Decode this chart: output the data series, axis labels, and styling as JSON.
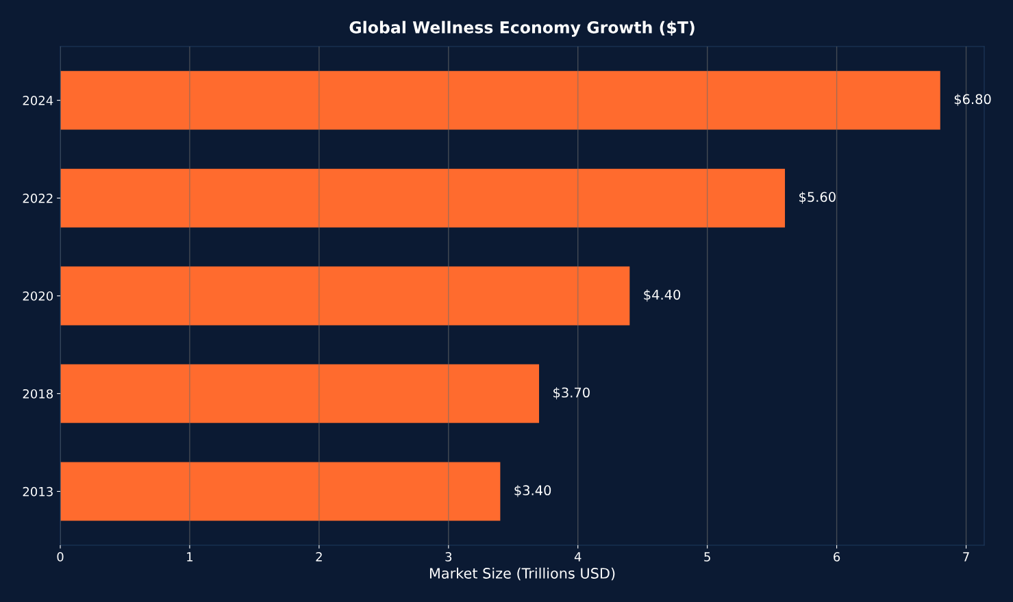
{
  "chart_data": {
    "type": "bar",
    "orientation": "horizontal",
    "title": "Global Wellness Economy Growth ($T)",
    "xlabel": "Market Size (Trillions USD)",
    "categories": [
      "2024",
      "2022",
      "2020",
      "2018",
      "2013"
    ],
    "values": [
      6.8,
      5.6,
      4.4,
      3.7,
      3.4
    ],
    "value_labels": [
      "$6.80",
      "$5.60",
      "$4.40",
      "$3.70",
      "$3.40"
    ],
    "color": "#ff6b2e",
    "xlim": [
      0,
      7.14
    ],
    "xticks": [
      0,
      1,
      2,
      3,
      4,
      5,
      6,
      7
    ],
    "grid": "x"
  }
}
